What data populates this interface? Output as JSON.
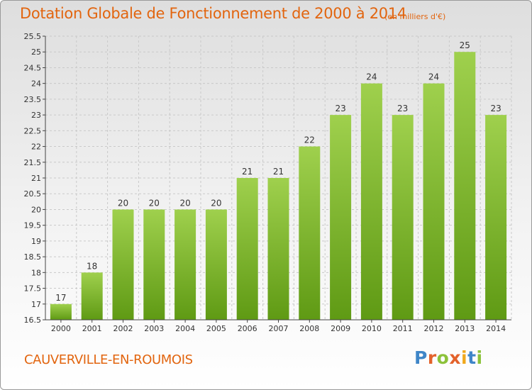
{
  "header": {
    "title": "Dotation Globale de Fonctionnement de 2000 à 2014",
    "subtitle": "(en milliers d'€)"
  },
  "footer": {
    "commune": "CAUVERVILLE-EN-ROUMOIS",
    "brand": {
      "text": "Proxiti",
      "letters": [
        "P",
        "r",
        "o",
        "x",
        "i",
        "t",
        "i"
      ],
      "colors": [
        "#3f86c8",
        "#e3622b",
        "#8cc23a",
        "#e3622b",
        "#f0a81c",
        "#3f86c8",
        "#8cc23a"
      ]
    }
  },
  "colors": {
    "title": "#e2650f",
    "bar_top": "#9fd04d",
    "bar_bottom": "#5f9a14",
    "grid": "#c9c9c9",
    "axis": "#444444"
  },
  "chart_data": {
    "type": "bar",
    "title": "Dotation Globale de Fonctionnement de 2000 à 2014",
    "subtitle": "(en milliers d'€)",
    "categories": [
      "2000",
      "2001",
      "2002",
      "2003",
      "2004",
      "2005",
      "2006",
      "2007",
      "2008",
      "2009",
      "2010",
      "2011",
      "2012",
      "2013",
      "2014"
    ],
    "values": [
      17,
      18,
      20,
      20,
      20,
      20,
      21,
      21,
      22,
      23,
      24,
      23,
      24,
      25,
      23
    ],
    "data_labels": [
      "17",
      "18",
      "20",
      "20",
      "20",
      "20",
      "21",
      "21",
      "22",
      "23",
      "24",
      "23",
      "24",
      "25",
      "23"
    ],
    "ylim": [
      16.5,
      25.5
    ],
    "yticks": [
      16.5,
      17,
      17.5,
      18,
      18.5,
      19,
      19.5,
      20,
      20.5,
      21,
      21.5,
      22,
      22.5,
      23,
      23.5,
      24,
      24.5,
      25,
      25.5
    ],
    "ytick_labels": [
      "16.5",
      "17",
      "17.5",
      "18",
      "18.5",
      "19",
      "19.5",
      "20",
      "20.5",
      "21",
      "21.5",
      "22",
      "22.5",
      "23",
      "23.5",
      "24",
      "24.5",
      "25",
      "25.5"
    ],
    "xlabel": "",
    "ylabel": "",
    "grid": true,
    "legend": "none"
  }
}
